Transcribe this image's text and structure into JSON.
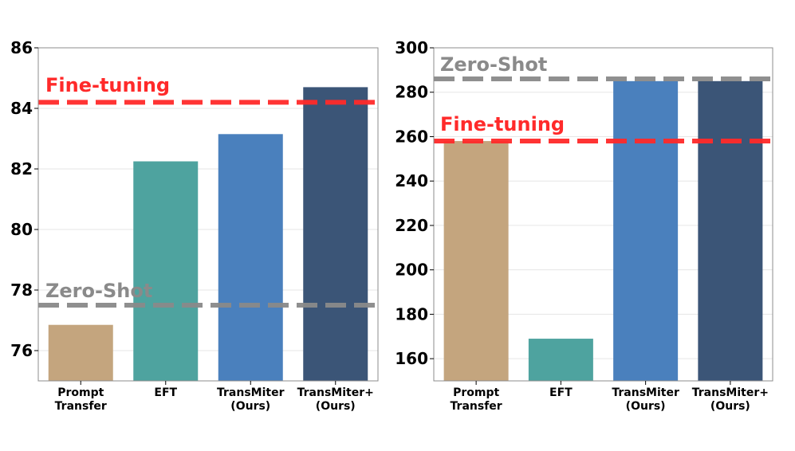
{
  "chart_data": [
    {
      "type": "bar",
      "categories": [
        [
          "Prompt",
          "Transfer"
        ],
        [
          "EFT"
        ],
        [
          "TransMiter",
          "(Ours)"
        ],
        [
          "TransMiter+",
          "(Ours)"
        ]
      ],
      "values": [
        76.85,
        82.25,
        83.15,
        84.7
      ],
      "bar_colors": [
        "#c4a57e",
        "#4ea39f",
        "#4a80bd",
        "#3b5577"
      ],
      "ylim": [
        75,
        86
      ],
      "yticks": [
        76,
        78,
        80,
        82,
        84,
        86
      ],
      "grid": true,
      "reference_lines": [
        {
          "label": "Fine-tuning",
          "value": 84.2,
          "color": "#ff2a2a"
        },
        {
          "label": "Zero-Shot",
          "value": 77.5,
          "color": "#8a8a8a"
        }
      ]
    },
    {
      "type": "bar",
      "categories": [
        [
          "Prompt",
          "Transfer"
        ],
        [
          "EFT"
        ],
        [
          "TransMiter",
          "(Ours)"
        ],
        [
          "TransMiter+",
          "(Ours)"
        ]
      ],
      "values": [
        258,
        169,
        285,
        285
      ],
      "bar_colors": [
        "#c4a57e",
        "#4ea39f",
        "#4a80bd",
        "#3b5577"
      ],
      "ylim": [
        150,
        300
      ],
      "yticks": [
        160,
        180,
        200,
        220,
        240,
        260,
        280,
        300
      ],
      "grid": true,
      "reference_lines": [
        {
          "label": "Zero-Shot",
          "value": 286,
          "color": "#8a8a8a"
        },
        {
          "label": "Fine-tuning",
          "value": 258,
          "color": "#ff2a2a"
        }
      ]
    }
  ]
}
